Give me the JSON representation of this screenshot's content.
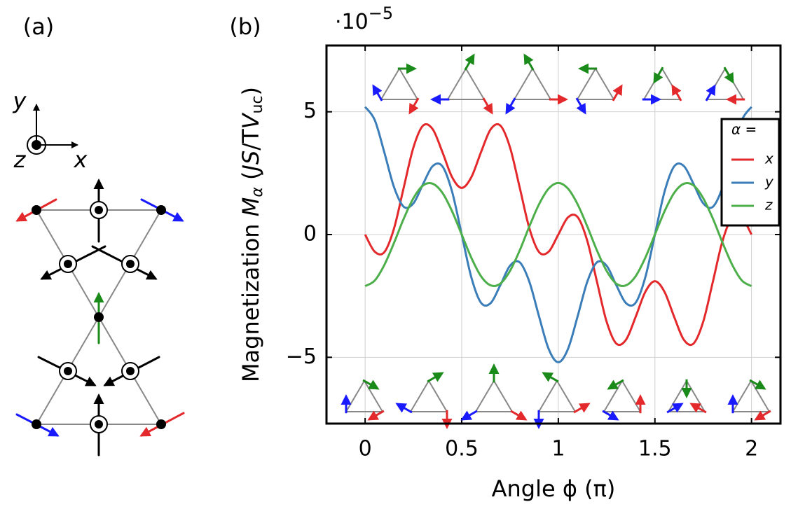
{
  "panel_labels": [
    "(a)",
    "(b)"
  ],
  "axes_icon": {
    "x": "x",
    "y": "y",
    "z": "z"
  },
  "chart_data": {
    "type": "line",
    "y_scale_base": "·10",
    "y_scale_exponent": "−5",
    "xlabel": "Angle ϕ (π)",
    "ylabel_parts": [
      "Magnetization ",
      "M",
      "α",
      " (",
      "JS",
      "/T",
      "V",
      "uc",
      ")"
    ],
    "legend_title": "α =",
    "legend": "upper right",
    "grid": true,
    "xlim": [
      -0.2,
      2.15
    ],
    "ylim": [
      -7.7,
      7.7
    ],
    "xticks": [
      0,
      0.5,
      1,
      1.5,
      2
    ],
    "yticks": [
      {
        "value": -5,
        "label": "−5"
      },
      0,
      5
    ],
    "x": [
      0,
      0.05,
      0.1,
      0.15,
      0.2,
      0.25,
      0.3,
      0.35,
      0.4,
      0.45,
      0.5,
      0.55,
      0.6,
      0.65,
      0.7,
      0.75,
      0.8,
      0.85,
      0.9,
      0.95,
      1,
      1.05,
      1.1,
      1.15,
      1.2,
      1.25,
      1.3,
      1.35,
      1.4,
      1.45,
      1.5,
      1.55,
      1.6,
      1.65,
      1.7,
      1.75,
      1.8,
      1.85,
      1.9,
      1.95,
      2
    ],
    "series": [
      {
        "name": "x",
        "color": "#e3292b",
        "values": [
          0,
          -0.7,
          -0.71,
          0.26,
          1.92,
          3.55,
          4.44,
          4.29,
          3.36,
          2.34,
          1.9,
          2.34,
          3.36,
          4.29,
          4.44,
          3.55,
          1.92,
          0.26,
          -0.71,
          -0.7,
          0,
          0.7,
          0.71,
          -0.26,
          -1.92,
          -3.55,
          -4.44,
          -4.29,
          -3.36,
          -2.34,
          -1.9,
          -2.34,
          -3.36,
          -4.29,
          -4.44,
          -3.55,
          -1.92,
          -0.26,
          0.71,
          0.7,
          0
        ]
      },
      {
        "name": "y",
        "color": "#3a7db8",
        "values": [
          5.2,
          4.66,
          3.33,
          1.92,
          1.13,
          1.27,
          2.06,
          2.79,
          2.78,
          1.75,
          0,
          -1.75,
          -2.78,
          -2.79,
          -2.06,
          -1.27,
          -1.13,
          -1.92,
          -3.33,
          -4.66,
          -5.2,
          -4.66,
          -3.33,
          -1.92,
          -1.13,
          -1.27,
          -2.06,
          -2.79,
          -2.78,
          -1.75,
          0,
          1.75,
          2.78,
          2.79,
          2.06,
          1.27,
          1.13,
          1.92,
          3.33,
          4.66,
          5.2
        ]
      },
      {
        "name": "z",
        "color": "#4daf4a",
        "values": [
          -2.1,
          -1.87,
          -1.23,
          -0.33,
          0.65,
          1.48,
          2,
          2.07,
          1.7,
          0.95,
          0,
          -0.95,
          -1.7,
          -2.07,
          -2,
          -1.48,
          -0.65,
          0.33,
          1.23,
          1.87,
          2.1,
          1.87,
          1.23,
          0.33,
          -0.65,
          -1.48,
          -2,
          -2.07,
          -1.7,
          -0.95,
          0,
          0.95,
          1.7,
          2.07,
          2,
          1.48,
          0.65,
          -0.33,
          -1.23,
          -1.87,
          -2.1
        ]
      }
    ]
  }
}
